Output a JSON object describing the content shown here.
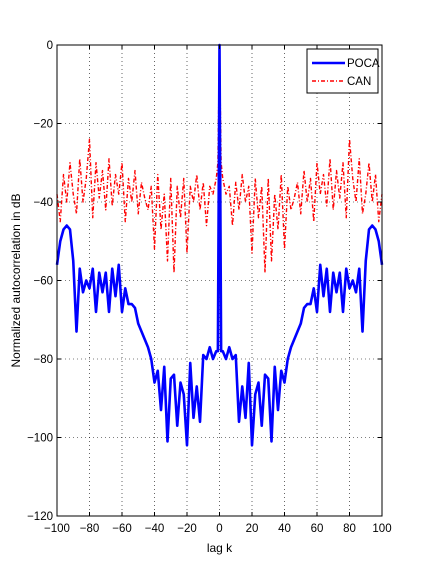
{
  "chart_data": {
    "type": "line",
    "title": "",
    "xlabel": "lag k",
    "ylabel": "Normalized autocorrelation in dB",
    "xlim": [
      -100,
      100
    ],
    "ylim": [
      -120,
      0
    ],
    "xticks": [
      -100,
      -80,
      -60,
      -40,
      -20,
      0,
      20,
      40,
      60,
      80,
      100
    ],
    "yticks": [
      0,
      -20,
      -40,
      -60,
      -80,
      -100,
      -120
    ],
    "grid": true,
    "legend_position": "top-right",
    "series": [
      {
        "name": "POCA",
        "color": "#0000ff",
        "style": "solid",
        "x": [
          -100,
          -98,
          -96,
          -94,
          -92,
          -90,
          -88,
          -86,
          -84,
          -82,
          -80,
          -78,
          -76,
          -74,
          -72,
          -70,
          -68,
          -66,
          -64,
          -62,
          -60,
          -58,
          -56,
          -54,
          -52,
          -50,
          -48,
          -46,
          -44,
          -42,
          -40,
          -38,
          -36,
          -34,
          -32,
          -30,
          -28,
          -26,
          -24,
          -22,
          -20,
          -18,
          -16,
          -14,
          -12,
          -10,
          -8,
          -6,
          -4,
          -2,
          -1,
          0,
          1,
          2,
          4,
          6,
          8,
          10,
          12,
          14,
          16,
          18,
          20,
          22,
          24,
          26,
          28,
          30,
          32,
          34,
          36,
          38,
          40,
          42,
          44,
          46,
          48,
          50,
          52,
          54,
          56,
          58,
          60,
          62,
          64,
          66,
          68,
          70,
          72,
          74,
          76,
          78,
          80,
          82,
          84,
          86,
          88,
          90,
          92,
          94,
          96,
          98,
          100
        ],
        "values": [
          -56,
          -50,
          -47,
          -46,
          -47,
          -55,
          -73,
          -57,
          -63,
          -60,
          -62,
          -57,
          -68,
          -58,
          -63,
          -58,
          -68,
          -57,
          -64,
          -56,
          -68,
          -62,
          -66,
          -66,
          -67,
          -71,
          -73,
          -75,
          -77,
          -80,
          -86,
          -83,
          -93,
          -82,
          -101,
          -85,
          -84,
          -97,
          -86,
          -89,
          -102,
          -81,
          -95,
          -87,
          -96,
          -79,
          -80,
          -77,
          -80,
          -78,
          -78,
          0,
          -78,
          -78,
          -80,
          -77,
          -80,
          -79,
          -96,
          -87,
          -95,
          -81,
          -102,
          -89,
          -86,
          -97,
          -84,
          -85,
          -101,
          -82,
          -93,
          -83,
          -86,
          -80,
          -77,
          -75,
          -73,
          -71,
          -67,
          -66,
          -66,
          -62,
          -68,
          -56,
          -64,
          -57,
          -68,
          -58,
          -63,
          -58,
          -68,
          -57,
          -62,
          -60,
          -63,
          -57,
          -73,
          -55,
          -47,
          -46,
          -47,
          -50,
          -56
        ]
      },
      {
        "name": "CAN",
        "color": "#ff0000",
        "style": "dash-dot",
        "x": [
          -100,
          -98,
          -96,
          -94,
          -92,
          -90,
          -88,
          -86,
          -84,
          -82,
          -80,
          -78,
          -76,
          -74,
          -72,
          -70,
          -68,
          -66,
          -64,
          -62,
          -60,
          -58,
          -56,
          -54,
          -52,
          -50,
          -48,
          -46,
          -44,
          -42,
          -40,
          -38,
          -36,
          -34,
          -32,
          -30,
          -28,
          -26,
          -24,
          -22,
          -20,
          -18,
          -16,
          -14,
          -12,
          -10,
          -8,
          -6,
          -4,
          -2,
          -1,
          0,
          1,
          2,
          4,
          6,
          8,
          10,
          12,
          14,
          16,
          18,
          20,
          22,
          24,
          26,
          28,
          30,
          32,
          34,
          36,
          38,
          40,
          42,
          44,
          46,
          48,
          50,
          52,
          54,
          56,
          58,
          60,
          62,
          64,
          66,
          68,
          70,
          72,
          74,
          76,
          78,
          80,
          82,
          84,
          86,
          88,
          90,
          92,
          94,
          96,
          98,
          100
        ],
        "values": [
          -38,
          -45,
          -33,
          -40,
          -30,
          -38,
          -43,
          -29,
          -40,
          -34,
          -24,
          -44,
          -30,
          -39,
          -32,
          -42,
          -29,
          -41,
          -33,
          -38,
          -30,
          -45,
          -34,
          -40,
          -32,
          -43,
          -35,
          -39,
          -42,
          -36,
          -52,
          -33,
          -47,
          -38,
          -55,
          -34,
          -58,
          -36,
          -44,
          -34,
          -53,
          -36,
          -40,
          -33,
          -42,
          -35,
          -46,
          -36,
          -38,
          -34,
          -30,
          0,
          -30,
          -34,
          -38,
          -36,
          -46,
          -35,
          -42,
          -33,
          -40,
          -36,
          -53,
          -34,
          -44,
          -36,
          -58,
          -34,
          -55,
          -38,
          -47,
          -33,
          -52,
          -36,
          -42,
          -39,
          -35,
          -43,
          -32,
          -40,
          -34,
          -45,
          -30,
          -38,
          -33,
          -41,
          -29,
          -42,
          -32,
          -39,
          -30,
          -44,
          -24,
          -34,
          -40,
          -29,
          -43,
          -38,
          -30,
          -40,
          -33,
          -45,
          -38
        ]
      }
    ]
  }
}
